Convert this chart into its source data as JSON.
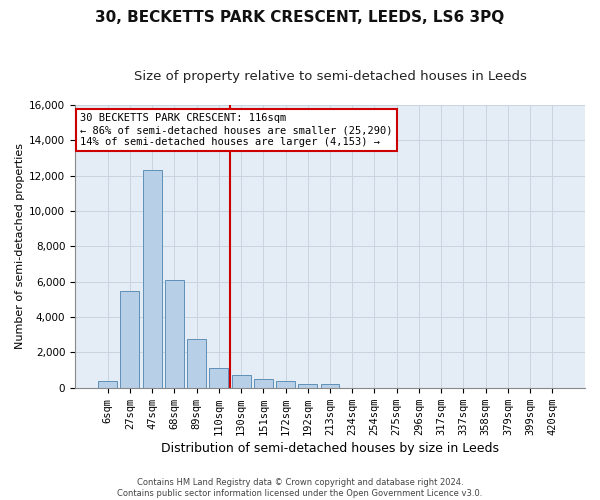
{
  "title": "30, BECKETTS PARK CRESCENT, LEEDS, LS6 3PQ",
  "subtitle": "Size of property relative to semi-detached houses in Leeds",
  "xlabel": "Distribution of semi-detached houses by size in Leeds",
  "ylabel": "Number of semi-detached properties",
  "footer_line1": "Contains HM Land Registry data © Crown copyright and database right 2024.",
  "footer_line2": "Contains public sector information licensed under the Open Government Licence v3.0.",
  "annotation_title": "30 BECKETTS PARK CRESCENT: 116sqm",
  "annotation_line1": "← 86% of semi-detached houses are smaller (25,290)",
  "annotation_line2": "14% of semi-detached houses are larger (4,153) →",
  "bar_categories": [
    "6sqm",
    "27sqm",
    "47sqm",
    "68sqm",
    "89sqm",
    "110sqm",
    "130sqm",
    "151sqm",
    "172sqm",
    "192sqm",
    "213sqm",
    "234sqm",
    "254sqm",
    "275sqm",
    "296sqm",
    "317sqm",
    "337sqm",
    "358sqm",
    "379sqm",
    "399sqm",
    "420sqm"
  ],
  "bar_values": [
    380,
    5500,
    12300,
    6100,
    2750,
    1100,
    700,
    480,
    380,
    220,
    210,
    0,
    0,
    0,
    0,
    0,
    0,
    0,
    0,
    0,
    0
  ],
  "bar_color": "#b8cfe8",
  "bar_edge_color": "#6090b8",
  "vline_color": "#cc0000",
  "vline_index": 5.5,
  "annotation_box_color": "#cc0000",
  "annotation_fill": "#ffffff",
  "grid_color": "#c8d4e0",
  "bg_color": "#e4edf5",
  "ylim": [
    0,
    16000
  ],
  "yticks": [
    0,
    2000,
    4000,
    6000,
    8000,
    10000,
    12000,
    14000,
    16000
  ],
  "title_fontsize": 11,
  "subtitle_fontsize": 9.5,
  "xlabel_fontsize": 9,
  "ylabel_fontsize": 8,
  "tick_fontsize": 7.5,
  "ann_fontsize": 7.5,
  "footer_fontsize": 6
}
